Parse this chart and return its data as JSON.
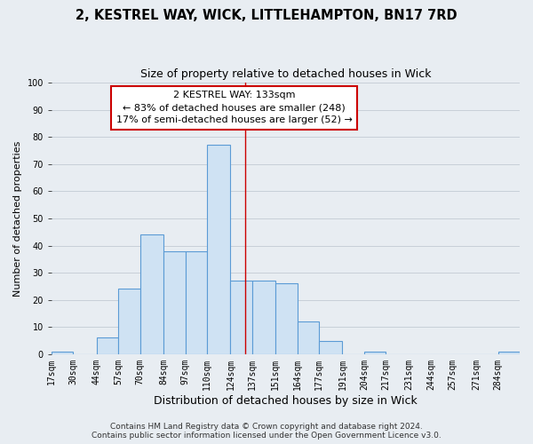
{
  "title": "2, KESTREL WAY, WICK, LITTLEHAMPTON, BN17 7RD",
  "subtitle": "Size of property relative to detached houses in Wick",
  "xlabel": "Distribution of detached houses by size in Wick",
  "ylabel": "Number of detached properties",
  "bin_labels": [
    "17sqm",
    "30sqm",
    "44sqm",
    "57sqm",
    "70sqm",
    "84sqm",
    "97sqm",
    "110sqm",
    "124sqm",
    "137sqm",
    "151sqm",
    "164sqm",
    "177sqm",
    "191sqm",
    "204sqm",
    "217sqm",
    "231sqm",
    "244sqm",
    "257sqm",
    "271sqm",
    "284sqm"
  ],
  "bin_edges": [
    17,
    30,
    44,
    57,
    70,
    84,
    97,
    110,
    124,
    137,
    151,
    164,
    177,
    191,
    204,
    217,
    231,
    244,
    257,
    271,
    284
  ],
  "bar_heights": [
    1,
    0,
    6,
    24,
    44,
    38,
    38,
    77,
    27,
    27,
    26,
    12,
    5,
    0,
    1,
    0,
    0,
    0,
    0,
    0,
    1
  ],
  "bar_color": "#cfe2f3",
  "bar_edge_color": "#5b9bd5",
  "bar_edge_width": 0.8,
  "vline_x": 133,
  "vline_color": "#cc0000",
  "annotation_title": "2 KESTREL WAY: 133sqm",
  "annotation_line1": "← 83% of detached houses are smaller (248)",
  "annotation_line2": "17% of semi-detached houses are larger (52) →",
  "annotation_box_color": "#ffffff",
  "annotation_box_edge_color": "#cc0000",
  "ylim": [
    0,
    100
  ],
  "yticks": [
    0,
    10,
    20,
    30,
    40,
    50,
    60,
    70,
    80,
    90,
    100
  ],
  "grid_color": "#c8d0d8",
  "background_color": "#e8edf2",
  "footer_line1": "Contains HM Land Registry data © Crown copyright and database right 2024.",
  "footer_line2": "Contains public sector information licensed under the Open Government Licence v3.0.",
  "title_fontsize": 10.5,
  "subtitle_fontsize": 9,
  "xlabel_fontsize": 9,
  "ylabel_fontsize": 8,
  "tick_fontsize": 7,
  "footer_fontsize": 6.5,
  "annot_fontsize": 8
}
